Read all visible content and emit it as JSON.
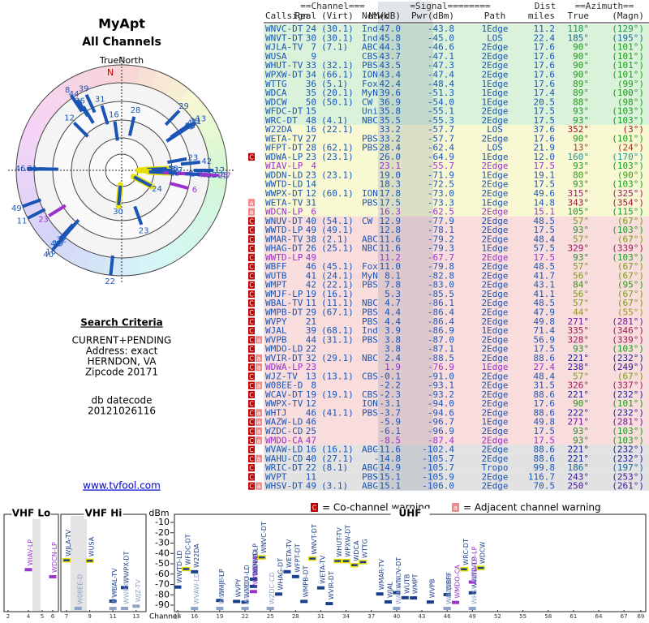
{
  "title": "MyApt",
  "subtitle": "All Channels",
  "north_label": "TrueNorth",
  "north_mark": "N",
  "criteria": {
    "heading": "Search Criteria",
    "lines": [
      "CURRENT+PENDING",
      "Address: exact",
      "HERNDON, VA",
      "Zipcode 20171"
    ],
    "datecode_label": "db datecode",
    "datecode": "20121026116"
  },
  "link": "www.tvfool.com",
  "table": {
    "group_headers": [
      {
        "text": "==Channel===",
        "key": "channel"
      },
      {
        "text": "=Signal========",
        "key": "signal"
      },
      {
        "text": "Dist",
        "key": "dist"
      },
      {
        "text": "==Azimuth==",
        "key": "azimuth"
      }
    ],
    "columns": {
      "callsign": "Callsign",
      "real": "Real",
      "virt": "(Virt)",
      "netwk": "Netwk",
      "nm": "NM(dB)",
      "pwr": "Pwr(dBm)",
      "path": "Path",
      "dist": "miles",
      "true": "True",
      "magn": "(Magn)"
    },
    "rows": [
      {
        "callsign": "WNVC-DT",
        "real": 24,
        "virt": "(30.1)",
        "netwk": "Ind",
        "nm": "47.0",
        "pwr": "-43.8",
        "path": "1Edge",
        "dist": "11.2",
        "true": "118°",
        "magn": "(129°)"
      },
      {
        "callsign": "WNVT-DT",
        "real": 30,
        "virt": "(30.1)",
        "netwk": "Ind",
        "nm": "45.8",
        "pwr": "-45.0",
        "path": "LOS",
        "dist": "22.4",
        "true": "185°",
        "magn": "(195°)"
      },
      {
        "callsign": "WJLA-TV",
        "real": 7,
        "virt": "(7.1)",
        "netwk": "ABC",
        "nm": "44.3",
        "pwr": "-46.6",
        "path": "2Edge",
        "dist": "17.6",
        "true": "90°",
        "magn": "(101°)"
      },
      {
        "callsign": "WUSA",
        "real": 9,
        "netwk": "CBS",
        "nm": "43.7",
        "pwr": "-47.1",
        "path": "2Edge",
        "dist": "17.6",
        "true": "90°",
        "magn": "(101°)"
      },
      {
        "callsign": "WHUT-TV",
        "real": 33,
        "virt": "(32.1)",
        "netwk": "PBS",
        "nm": "43.5",
        "pwr": "-47.3",
        "path": "2Edge",
        "dist": "17.6",
        "true": "90°",
        "magn": "(101°)"
      },
      {
        "callsign": "WPXW-DT",
        "real": 34,
        "virt": "(66.1)",
        "netwk": "ION",
        "nm": "43.4",
        "pwr": "-47.4",
        "path": "2Edge",
        "dist": "17.6",
        "true": "90°",
        "magn": "(101°)"
      },
      {
        "callsign": "WTTG",
        "real": 36,
        "virt": "(5.1)",
        "netwk": "Fox",
        "nm": "42.4",
        "pwr": "-48.4",
        "path": "1Edge",
        "dist": "17.6",
        "true": "89°",
        "magn": "(99°)"
      },
      {
        "callsign": "WDCA",
        "real": 35,
        "virt": "(20.1)",
        "netwk": "MyN",
        "nm": "39.6",
        "pwr": "-51.3",
        "path": "1Edge",
        "dist": "17.4",
        "true": "89°",
        "magn": "(100°)"
      },
      {
        "callsign": "WDCW",
        "real": 50,
        "virt": "(50.1)",
        "netwk": "CW",
        "nm": "36.9",
        "pwr": "-54.0",
        "path": "1Edge",
        "dist": "20.5",
        "true": "88°",
        "magn": "(98°)"
      },
      {
        "callsign": "WFDC-DT",
        "real": 15,
        "netwk": "Uni",
        "nm": "35.8",
        "pwr": "-55.1",
        "path": "2Edge",
        "dist": "17.5",
        "true": "93°",
        "magn": "(103°)"
      },
      {
        "callsign": "WRC-DT",
        "real": 48,
        "virt": "(4.1)",
        "netwk": "NBC",
        "nm": "35.5",
        "pwr": "-55.3",
        "path": "2Edge",
        "dist": "17.5",
        "true": "93°",
        "magn": "(103°)"
      },
      {
        "callsign": "W22DA",
        "real": 16,
        "virt": "(22.1)",
        "nm": "33.2",
        "pwr": "-57.7",
        "path": "LOS",
        "dist": "37.6",
        "true": "352°",
        "magn": "(3°)"
      },
      {
        "callsign": "WETA-TV",
        "real": 27,
        "netwk": "PBS",
        "nm": "33.2",
        "pwr": "-57.7",
        "path": "2Edge",
        "dist": "17.6",
        "true": "90°",
        "magn": "(101°)"
      },
      {
        "callsign": "WFPT-DT",
        "real": 28,
        "virt": "(62.1)",
        "netwk": "PBS",
        "nm": "28.4",
        "pwr": "-62.4",
        "path": "LOS",
        "dist": "21.9",
        "true": "13°",
        "magn": "(24°)"
      },
      {
        "callsign": "WDWA-LP",
        "real": 23,
        "virt": "(23.1)",
        "nm": "26.0",
        "pwr": "-64.9",
        "path": "1Edge",
        "dist": "12.0",
        "true": "160°",
        "magn": "(170°)",
        "flags": [
          "C"
        ]
      },
      {
        "callsign": "WIAV-LP",
        "real": 4,
        "nm": "23.1",
        "pwr": "-55.7",
        "path": "2Edge",
        "dist": "17.5",
        "true": "93°",
        "magn": "(103°)",
        "color": "#9933cc"
      },
      {
        "callsign": "WDDN-LD",
        "real": 23,
        "virt": "(23.1)",
        "nm": "19.0",
        "pwr": "-71.9",
        "path": "1Edge",
        "dist": "19.1",
        "true": "80°",
        "magn": "(90°)"
      },
      {
        "callsign": "WWTD-LD",
        "real": 14,
        "nm": "18.3",
        "pwr": "-72.5",
        "path": "2Edge",
        "dist": "17.5",
        "true": "93°",
        "magn": "(103°)"
      },
      {
        "callsign": "WWPX-DT",
        "real": 12,
        "virt": "(60.1)",
        "netwk": "ION",
        "nm": "17.8",
        "pwr": "-73.0",
        "path": "2Edge",
        "dist": "49.6",
        "true": "315°",
        "magn": "(325°)"
      },
      {
        "callsign": "WETA-TV",
        "real": 31,
        "netwk": "PBS",
        "nm": "17.5",
        "pwr": "-73.3",
        "path": "1Edge",
        "dist": "14.8",
        "true": "343°",
        "magn": "(354°)",
        "flags": [
          "a"
        ]
      },
      {
        "callsign": "WDCN-LP",
        "real": 6,
        "nm": "16.3",
        "pwr": "-62.5",
        "path": "2Edge",
        "dist": "15.1",
        "true": "105°",
        "magn": "(115°)",
        "color": "#9933cc",
        "flags": [
          "a"
        ]
      },
      {
        "callsign": "WNUV-DT",
        "real": 40,
        "virt": "(54.1)",
        "netwk": "CW",
        "nm": "12.9",
        "pwr": "-77.9",
        "path": "2Edge",
        "dist": "48.5",
        "true": "57°",
        "magn": "(67°)",
        "flags": [
          "C"
        ]
      },
      {
        "callsign": "WWTD-LP",
        "real": 49,
        "virt": "(49.1)",
        "nm": "12.8",
        "pwr": "-78.1",
        "path": "2Edge",
        "dist": "17.5",
        "true": "93°",
        "magn": "(103°)",
        "flags": [
          "C"
        ]
      },
      {
        "callsign": "WMAR-TV",
        "real": 38,
        "virt": "(2.1)",
        "netwk": "ABC",
        "nm": "11.6",
        "pwr": "-79.2",
        "path": "2Edge",
        "dist": "48.4",
        "true": "57°",
        "magn": "(67°)",
        "flags": [
          "C"
        ]
      },
      {
        "callsign": "WHAG-DT",
        "real": 26,
        "virt": "(25.1)",
        "netwk": "NBC",
        "nm": "11.6",
        "pwr": "-79.3",
        "path": "1Edge",
        "dist": "57.5",
        "true": "329°",
        "magn": "(339°)",
        "flags": [
          "C"
        ]
      },
      {
        "callsign": "WWTD-LP",
        "real": 49,
        "nm": "11.2",
        "pwr": "-67.7",
        "path": "2Edge",
        "dist": "17.5",
        "true": "93°",
        "magn": "(103°)",
        "color": "#9933cc",
        "flags": [
          "C"
        ]
      },
      {
        "callsign": "WBFF",
        "real": 46,
        "virt": "(45.1)",
        "netwk": "Fox",
        "nm": "11.0",
        "pwr": "-79.8",
        "path": "2Edge",
        "dist": "48.5",
        "true": "57°",
        "magn": "(67°)",
        "flags": [
          "C"
        ]
      },
      {
        "callsign": "WUTB",
        "real": 41,
        "virt": "(24.1)",
        "netwk": "MyN",
        "nm": "8.1",
        "pwr": "-82.8",
        "path": "2Edge",
        "dist": "41.7",
        "true": "56°",
        "magn": "(67°)",
        "flags": [
          "C"
        ]
      },
      {
        "callsign": "WMPT",
        "real": 42,
        "virt": "(22.1)",
        "netwk": "PBS",
        "nm": "7.8",
        "pwr": "-83.0",
        "path": "2Edge",
        "dist": "43.1",
        "true": "84°",
        "magn": "(95°)",
        "flags": [
          "C"
        ]
      },
      {
        "callsign": "WMJF-LP",
        "real": 19,
        "virt": "(16.1)",
        "nm": "5.3",
        "pwr": "-85.5",
        "path": "2Edge",
        "dist": "41.1",
        "true": "56°",
        "magn": "(67°)",
        "flags": [
          "C"
        ]
      },
      {
        "callsign": "WBAL-TV",
        "real": 11,
        "virt": "(11.1)",
        "netwk": "NBC",
        "nm": "4.7",
        "pwr": "-86.1",
        "path": "2Edge",
        "dist": "48.5",
        "true": "57°",
        "magn": "(67°)",
        "flags": [
          "C"
        ]
      },
      {
        "callsign": "WMPB-DT",
        "real": 29,
        "virt": "(67.1)",
        "netwk": "PBS",
        "nm": "4.4",
        "pwr": "-86.4",
        "path": "2Edge",
        "dist": "47.9",
        "true": "44°",
        "magn": "(55°)",
        "flags": [
          "C"
        ]
      },
      {
        "callsign": "WVPY",
        "real": 21,
        "netwk": "PBS",
        "nm": "4.4",
        "pwr": "-86.4",
        "path": "2Edge",
        "dist": "49.8",
        "true": "271°",
        "magn": "(281°)",
        "flags": [
          "C"
        ]
      },
      {
        "callsign": "WJAL",
        "real": 39,
        "virt": "(68.1)",
        "netwk": "Ind",
        "nm": "3.9",
        "pwr": "-86.9",
        "path": "1Edge",
        "dist": "71.4",
        "true": "335°",
        "magn": "(346°)",
        "flags": [
          "C"
        ]
      },
      {
        "callsign": "WVPB",
        "real": 44,
        "virt": "(31.1)",
        "netwk": "PBS",
        "nm": "3.8",
        "pwr": "-87.0",
        "path": "2Edge",
        "dist": "56.9",
        "true": "328°",
        "magn": "(339°)",
        "flags": [
          "C",
          "a"
        ]
      },
      {
        "callsign": "WMDO-LD",
        "real": 22,
        "nm": "3.8",
        "pwr": "-87.1",
        "path": "2Edge",
        "dist": "17.5",
        "true": "93°",
        "magn": "(103°)",
        "flags": [
          "C"
        ]
      },
      {
        "callsign": "WVIR-DT",
        "real": 32,
        "virt": "(29.1)",
        "netwk": "NBC",
        "nm": "2.4",
        "pwr": "-88.5",
        "path": "2Edge",
        "dist": "88.6",
        "true": "221°",
        "magn": "(232°)",
        "flags": [
          "C",
          "a"
        ]
      },
      {
        "callsign": "WDWA-LP",
        "real": 23,
        "nm": "1.9",
        "pwr": "-76.9",
        "path": "1Edge",
        "dist": "27.4",
        "true": "238°",
        "magn": "(249°)",
        "color": "#9933cc",
        "flags": [
          "C",
          "a"
        ]
      },
      {
        "callsign": "WJZ-TV",
        "real": 13,
        "virt": "(13.1)",
        "netwk": "CBS",
        "nm": "-0.1",
        "pwr": "-91.0",
        "path": "2Edge",
        "dist": "48.4",
        "true": "57°",
        "magn": "(67°)",
        "flags": [
          "C"
        ]
      },
      {
        "callsign": "W08EE-D",
        "real": 8,
        "nm": "-2.2",
        "pwr": "-93.1",
        "path": "2Edge",
        "dist": "31.5",
        "true": "326°",
        "magn": "(337°)",
        "flags": [
          "C",
          "a"
        ]
      },
      {
        "callsign": "WCAV-DT",
        "real": 19,
        "virt": "(19.1)",
        "netwk": "CBS",
        "nm": "-2.3",
        "pwr": "-93.2",
        "path": "2Edge",
        "dist": "88.6",
        "true": "221°",
        "magn": "(232°)",
        "flags": [
          "C"
        ]
      },
      {
        "callsign": "WWPX-TV",
        "real": 12,
        "netwk": "ION",
        "nm": "-3.1",
        "pwr": "-94.0",
        "path": "2Edge",
        "dist": "17.6",
        "true": "90°",
        "magn": "(101°)",
        "flags": [
          "C"
        ]
      },
      {
        "callsign": "WHTJ",
        "real": 46,
        "virt": "(41.1)",
        "netwk": "PBS",
        "nm": "-3.7",
        "pwr": "-94.6",
        "path": "2Edge",
        "dist": "88.6",
        "true": "222°",
        "magn": "(232°)",
        "flags": [
          "C",
          "a"
        ]
      },
      {
        "callsign": "WAZW-LD",
        "real": 46,
        "nm": "-5.9",
        "pwr": "-96.7",
        "path": "1Edge",
        "dist": "49.8",
        "true": "271°",
        "magn": "(281°)",
        "flags": [
          "C",
          "a"
        ]
      },
      {
        "callsign": "WZDC-CD",
        "real": 25,
        "nm": "-6.1",
        "pwr": "-96.9",
        "path": "2Edge",
        "dist": "17.5",
        "true": "93°",
        "magn": "(103°)",
        "flags": [
          "C",
          "a"
        ]
      },
      {
        "callsign": "WMDO-CA",
        "real": 47,
        "nm": "-8.5",
        "pwr": "-87.4",
        "path": "2Edge",
        "dist": "17.5",
        "true": "93°",
        "magn": "(103°)",
        "color": "#9933cc",
        "flags": [
          "C",
          "a"
        ]
      },
      {
        "callsign": "WVAW-LD",
        "real": 16,
        "virt": "(16.1)",
        "netwk": "ABC",
        "nm": "-11.6",
        "pwr": "-102.4",
        "path": "2Edge",
        "dist": "88.6",
        "true": "221°",
        "magn": "(232°)",
        "flags": [
          "C"
        ]
      },
      {
        "callsign": "WAHU-CD",
        "real": 40,
        "virt": "(27.1)",
        "nm": "-14.8",
        "pwr": "-105.7",
        "path": "2Edge",
        "dist": "88.6",
        "true": "221°",
        "magn": "(232°)",
        "flags": [
          "C",
          "a"
        ]
      },
      {
        "callsign": "WRIC-DT",
        "real": 22,
        "virt": "(8.1)",
        "netwk": "ABC",
        "nm": "-14.9",
        "pwr": "-105.7",
        "path": "Tropo",
        "dist": "99.8",
        "true": "186°",
        "magn": "(197°)",
        "flags": [
          "C"
        ]
      },
      {
        "callsign": "WVPT",
        "real": 11,
        "netwk": "PBS",
        "nm": "-15.1",
        "pwr": "-105.9",
        "path": "2Edge",
        "dist": "116.7",
        "true": "243°",
        "magn": "(253°)",
        "flags": [
          "C"
        ]
      },
      {
        "callsign": "WHSV-DT",
        "real": 49,
        "virt": "(3.1)",
        "netwk": "ABC",
        "nm": "-15.1",
        "pwr": "-106.0",
        "path": "2Edge",
        "dist": "70.5",
        "true": "250°",
        "magn": "(261°)",
        "flags": [
          "C",
          "a"
        ]
      }
    ]
  },
  "legend": {
    "co": {
      "flag": "C",
      "text": "= Co-channel warning"
    },
    "adj": {
      "flag": "a",
      "text": "= Adjacent channel warning"
    }
  },
  "spectrum": {
    "bands": [
      "VHF Lo",
      "VHF Hi",
      "UHF"
    ],
    "y_label": "dBm",
    "x_label": "Channel",
    "yticks": [
      -10,
      -20,
      -30,
      -40,
      -50,
      -60,
      -70,
      -80,
      -90
    ],
    "xticks": [
      2,
      4,
      5,
      6,
      7,
      9,
      11,
      13,
      14,
      16,
      19,
      22,
      25,
      28,
      31,
      34,
      37,
      40,
      43,
      46,
      49,
      52,
      55,
      58,
      61,
      64,
      67,
      69
    ]
  }
}
